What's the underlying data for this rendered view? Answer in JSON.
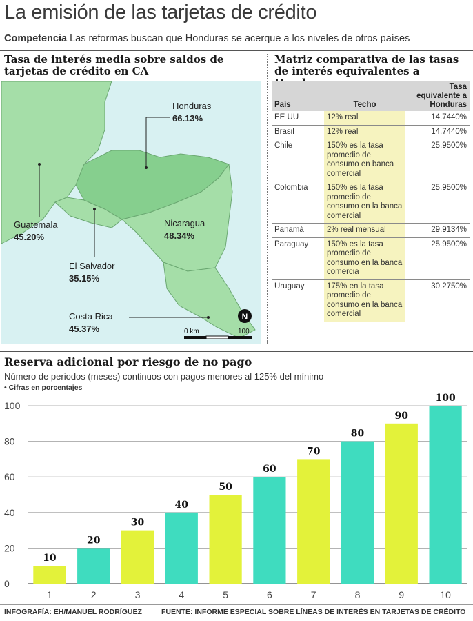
{
  "header": {
    "title": "La emisión de las tarjetas de crédito",
    "subtitle_lead": "Competencia",
    "subtitle_text": " Las reformas buscan que Honduras se acerque a los niveles de otros países"
  },
  "map": {
    "title": "Tasa de interés media sobre saldos de tarjetas de crédito en CA",
    "countries": [
      {
        "name": "Honduras",
        "value": "66.13%"
      },
      {
        "name": "Guatemala",
        "value": "45.20%"
      },
      {
        "name": "Nicaragua",
        "value": "48.34%"
      },
      {
        "name": "El Salvador",
        "value": "35.15%"
      },
      {
        "name": "Costa Rica",
        "value": "45.37%"
      }
    ],
    "scale_start": "0 km",
    "scale_end": "100",
    "north": "N",
    "colors": {
      "sea": "#d8f1f2",
      "land": "#a5dea8",
      "highlight": "#86cf8e",
      "border": "#6aa771"
    }
  },
  "matrix": {
    "title": "Matriz comparativa de las tasas de interés equivalentes a Honduras",
    "headers": {
      "pais": "País",
      "techo": "Techo",
      "tasa": "Tasa equivalente a Honduras"
    },
    "rows": [
      {
        "pais": "EE UU",
        "techo": "12% real",
        "tasa": "14.7440%"
      },
      {
        "pais": "Brasil",
        "techo": "12% real",
        "tasa": "14.7440%"
      },
      {
        "pais": "Chile",
        "techo": "150% es la tasa promedio de consumo en banca comercial",
        "tasa": "25.9500%"
      },
      {
        "pais": "Colombia",
        "techo": "150% es la tasa promedio de consumo en la banca comercial",
        "tasa": "25.9500%"
      },
      {
        "pais": "Panamá",
        "techo": "2% real mensual",
        "tasa": "29.9134%"
      },
      {
        "pais": "Paraguay",
        "techo": "150% es la tasa promedio de consumo en la banca comercia",
        "tasa": "25.9500%"
      },
      {
        "pais": "Uruguay",
        "techo": "175% en la tasa promedio de consumo en la banca comercial",
        "tasa": "30.2750%"
      }
    ]
  },
  "chart_section": {
    "title": "Reserva adicional por riesgo de no pago",
    "subtitle": "Número de periodos (meses) continuos con  pagos menores al 125% del mínimo",
    "note": "• Cifras en porcentajes"
  },
  "chart_data": {
    "type": "bar",
    "title": "Reserva adicional por riesgo de no pago",
    "xlabel": "",
    "ylabel": "",
    "categories": [
      "1",
      "2",
      "3",
      "4",
      "5",
      "6",
      "7",
      "8",
      "9",
      "10"
    ],
    "values": [
      10,
      20,
      30,
      40,
      50,
      60,
      70,
      80,
      90,
      100
    ],
    "data_labels": [
      "10",
      "20",
      "30",
      "40",
      "50",
      "60",
      "70",
      "80",
      "90",
      "100"
    ],
    "ylim": [
      0,
      100
    ],
    "yticks": [
      "0",
      "20",
      "40",
      "60",
      "80",
      "100"
    ],
    "grid": true,
    "bar_colors": [
      "#e3f23a",
      "#3fdcbf",
      "#e3f23a",
      "#3fdcbf",
      "#e3f23a",
      "#3fdcbf",
      "#e3f23a",
      "#3fdcbf",
      "#e3f23a",
      "#3fdcbf"
    ]
  },
  "footer": {
    "credit": "INFOGRAFÍA: EH/MANUEL RODRÍGUEZ",
    "source": "FUENTE:  INFORME ESPECIAL SOBRE LÍNEAS DE INTERÉS EN TARJETAS DE CRÉDITO"
  }
}
